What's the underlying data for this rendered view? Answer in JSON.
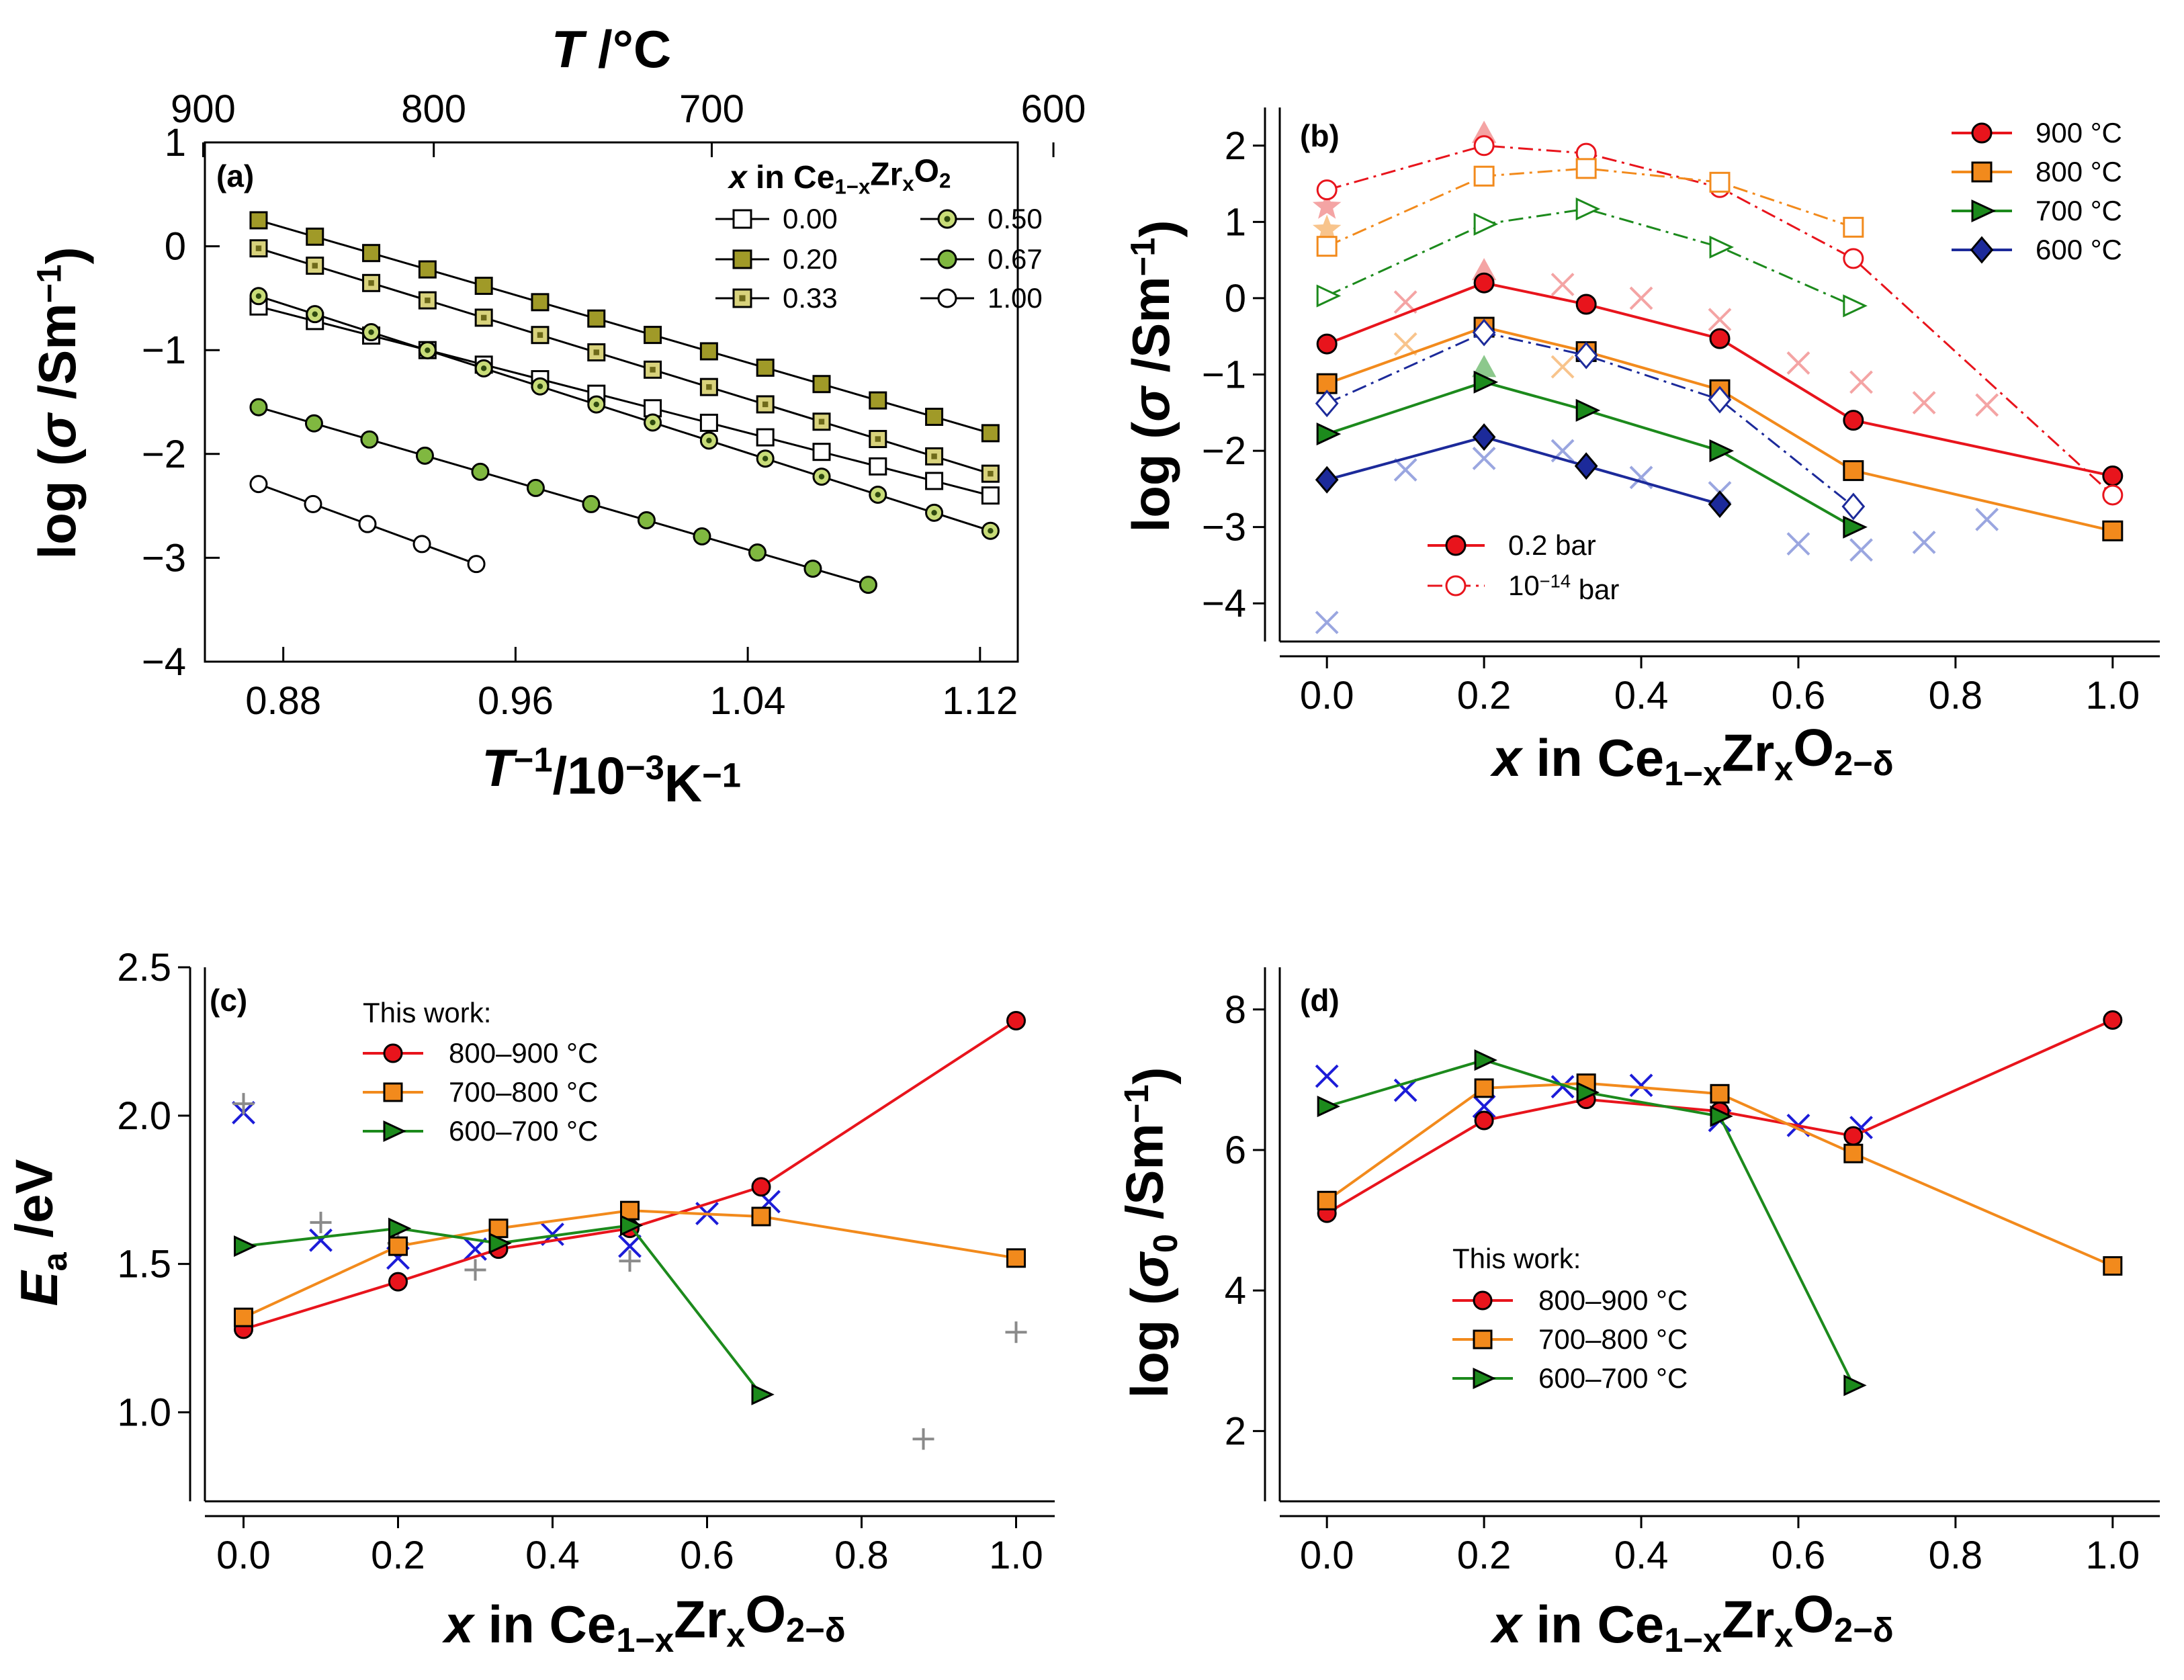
{
  "chart_data": [
    {
      "panel": "(a)",
      "type": "line",
      "xlabel_main": "T",
      "xlabel_sup": "−1",
      "xlabel_units": "/10",
      "xlabel_exp": "−3",
      "xlabel_units2": "K",
      "xlabel_exp2": "−1",
      "ylabel_main": "log (",
      "ylabel_sym": "σ",
      "ylabel_units": " /Sm",
      "ylabel_sup": "−1",
      "ylabel_close": ")",
      "top_axis_title_sym": "T",
      "top_axis_title_units": " /°C",
      "top_ticks": [
        "900",
        "800",
        "700",
        "600"
      ],
      "top_tick_values_C": [
        900,
        800,
        700,
        600
      ],
      "xlim": [
        0.853,
        1.133
      ],
      "ylim": [
        -4,
        1
      ],
      "xticks": [
        0.88,
        0.96,
        1.04,
        1.12
      ],
      "xtick_labels": [
        "0.88",
        "0.96",
        "1.04",
        "1.12"
      ],
      "yticks": [
        -4,
        -3,
        -2,
        -1,
        0,
        1
      ],
      "ytick_labels": [
        "−4",
        "−3",
        "−2",
        "−1",
        "0",
        "1"
      ],
      "legend_title_sym": "x",
      "legend_title_text": " in Ce",
      "legend_title_sub1": "1−x",
      "legend_title_mid": "Zr",
      "legend_title_sub2": "x",
      "legend_title_mid2": "O",
      "legend_title_sub3": "2",
      "series": [
        {
          "name": "0.00",
          "marker": "square",
          "fill": "#ffffff",
          "inner": "",
          "x_start": 0.8715,
          "x_end": 1.1236,
          "y_start": -0.58,
          "y_end": -2.4
        },
        {
          "name": "0.20",
          "marker": "square",
          "fill": "#a09a28",
          "inner": "",
          "x_start": 0.8715,
          "x_end": 1.1236,
          "y_start": 0.25,
          "y_end": -1.8
        },
        {
          "name": "0.33",
          "marker": "square",
          "fill": "#d8d27c",
          "inner": "#6e6a1a",
          "x_start": 0.8715,
          "x_end": 1.1236,
          "y_start": -0.02,
          "y_end": -2.19
        },
        {
          "name": "0.50",
          "marker": "circle",
          "fill": "#c8dc78",
          "inner": "#2f4a10",
          "x_start": 0.8715,
          "x_end": 1.1236,
          "y_start": -0.48,
          "y_end": -2.74
        },
        {
          "name": "0.67",
          "marker": "circle",
          "fill": "#80b840",
          "inner": "",
          "x_start": 0.8715,
          "x_end": 1.0815,
          "y_start": -1.55,
          "y_end": -3.26
        },
        {
          "name": "1.00",
          "marker": "circle",
          "fill": "#ffffff",
          "inner": "",
          "x_start": 0.8715,
          "x_end": 0.9465,
          "y_start": -2.29,
          "y_end": -3.06
        }
      ]
    },
    {
      "panel": "(b)",
      "type": "line",
      "xlabel_sym": "x",
      "xlabel_text": " in Ce",
      "xlabel_sub1": "1−x",
      "xlabel_mid": "Zr",
      "xlabel_sub2": "x",
      "xlabel_mid2": "O",
      "xlabel_sub3": "2−δ",
      "ylabel_main": "log (",
      "ylabel_sym": "σ",
      "ylabel_units": " /Sm",
      "ylabel_sup": "−1",
      "ylabel_close": ")",
      "xlim": [
        -0.06,
        1.06
      ],
      "ylim": [
        -4.5,
        2.5
      ],
      "xticks": [
        0,
        0.2,
        0.4,
        0.6,
        0.8,
        1.0
      ],
      "xtick_labels": [
        "0.0",
        "0.2",
        "0.4",
        "0.6",
        "0.8",
        "1.0"
      ],
      "yticks": [
        -4,
        -3,
        -2,
        -1,
        0,
        1,
        2
      ],
      "ytick_labels": [
        "−4",
        "−3",
        "−2",
        "−1",
        "0",
        "1",
        "2"
      ],
      "legend_pressure": [
        "0.2 bar",
        "10",
        "−14",
        " bar"
      ],
      "series": [
        {
          "name": "900 °C",
          "color": "#e8141c",
          "marker": "circle",
          "dash": false,
          "x": [
            0,
            0.2,
            0.33,
            0.5,
            0.67,
            1.0
          ],
          "y": [
            -0.6,
            0.2,
            -0.08,
            -0.53,
            -1.6,
            -2.33
          ]
        },
        {
          "name": "800 °C",
          "color": "#f28a1c",
          "marker": "square",
          "dash": false,
          "x": [
            0,
            0.2,
            0.33,
            0.5,
            0.67,
            1.0
          ],
          "y": [
            -1.12,
            -0.38,
            -0.7,
            -1.2,
            -2.26,
            -3.05
          ]
        },
        {
          "name": "700 °C",
          "color": "#1c8a1c",
          "marker": "triangle",
          "dash": false,
          "x": [
            0,
            0.2,
            0.33,
            0.5,
            0.67
          ],
          "y": [
            -1.78,
            -1.1,
            -1.47,
            -2.0,
            -3.0
          ]
        },
        {
          "name": "600 °C",
          "color": "#1c2a9a",
          "marker": "diamond",
          "dash": false,
          "x": [
            0,
            0.2,
            0.33,
            0.5
          ],
          "y": [
            -2.38,
            -1.82,
            -2.2,
            -2.7
          ]
        },
        {
          "name": "900 °C (10^-14 bar)",
          "color": "#e8141c",
          "marker": "circle",
          "dash": true,
          "x": [
            0,
            0.2,
            0.33,
            0.5,
            0.67,
            1.0
          ],
          "y": [
            1.42,
            2.0,
            1.9,
            1.45,
            0.52,
            -2.58
          ]
        },
        {
          "name": "800 °C (10^-14 bar)",
          "color": "#f28a1c",
          "marker": "square",
          "dash": true,
          "x": [
            0,
            0.2,
            0.33,
            0.5,
            0.67
          ],
          "y": [
            0.68,
            1.6,
            1.7,
            1.52,
            0.93
          ]
        },
        {
          "name": "700 °C (10^-14 bar)",
          "color": "#1c8a1c",
          "marker": "triangle",
          "dash": true,
          "x": [
            0,
            0.2,
            0.33,
            0.5,
            0.67
          ],
          "y": [
            0.03,
            0.97,
            1.17,
            0.67,
            -0.1
          ]
        },
        {
          "name": "600 °C (10^-14 bar)",
          "color": "#1c2a9a",
          "marker": "diamond",
          "dash": true,
          "x": [
            0,
            0.2,
            0.33,
            0.5,
            0.67
          ],
          "y": [
            -1.38,
            -0.45,
            -0.75,
            -1.33,
            -2.73
          ]
        }
      ],
      "literature": [
        {
          "marker": "x",
          "color": "#f4a4a4",
          "x": [
            0.1,
            0.3,
            0.4,
            0.5,
            0.6,
            0.68,
            0.76,
            0.84
          ],
          "y": [
            -0.05,
            0.18,
            0.0,
            -0.28,
            -0.85,
            -1.1,
            -1.37,
            -1.4
          ]
        },
        {
          "marker": "x",
          "color": "#f8c48c",
          "x": [
            0.1,
            0.3
          ],
          "y": [
            -0.6,
            -0.9
          ]
        },
        {
          "marker": "x",
          "color": "#9aa6e0",
          "x": [
            0,
            0.1,
            0.2,
            0.3,
            0.4,
            0.5,
            0.6,
            0.68,
            0.76,
            0.84
          ],
          "y": [
            -4.25,
            -2.25,
            -2.1,
            -2.0,
            -2.35,
            -2.55,
            -3.22,
            -3.3,
            -3.2,
            -2.9
          ]
        },
        {
          "marker": "triangle-up",
          "color": "#f4a4a4",
          "x": [
            0.2,
            0.2
          ],
          "y": [
            0.35,
            2.15
          ]
        },
        {
          "marker": "triangle-up",
          "color": "#8cc88c",
          "x": [
            0.2
          ],
          "y": [
            -0.92
          ]
        },
        {
          "marker": "star",
          "color": "#f8c48c",
          "x": [
            0
          ],
          "y": [
            0.9
          ]
        },
        {
          "marker": "star",
          "color": "#f4a4a4",
          "x": [
            0
          ],
          "y": [
            1.2
          ]
        }
      ]
    },
    {
      "panel": "(c)",
      "type": "line",
      "xlabel_sym": "x",
      "xlabel_text": " in Ce",
      "xlabel_sub1": "1−x",
      "xlabel_mid": "Zr",
      "xlabel_sub2": "x",
      "xlabel_mid2": "O",
      "xlabel_sub3": "2−δ",
      "ylabel_sym": "E",
      "ylabel_sub": "a",
      "ylabel_units": " /eV",
      "xlim": [
        -0.05,
        1.05
      ],
      "ylim": [
        0.7,
        2.5
      ],
      "xticks": [
        0,
        0.2,
        0.4,
        0.6,
        0.8,
        1.0
      ],
      "xtick_labels": [
        "0.0",
        "0.2",
        "0.4",
        "0.6",
        "0.8",
        "1.0"
      ],
      "yticks": [
        1.0,
        1.5,
        2.0,
        2.5
      ],
      "ytick_labels": [
        "1.0",
        "1.5",
        "2.0",
        "2.5"
      ],
      "legend_header": "This work:",
      "series": [
        {
          "name": "800–900 °C",
          "color": "#e8141c",
          "marker": "circle",
          "x": [
            0,
            0.2,
            0.33,
            0.5,
            0.67,
            1.0
          ],
          "y": [
            1.28,
            1.44,
            1.55,
            1.62,
            1.76,
            2.32
          ]
        },
        {
          "name": "700–800 °C",
          "color": "#f28a1c",
          "marker": "square",
          "x": [
            0,
            0.2,
            0.33,
            0.5,
            0.67,
            1.0
          ],
          "y": [
            1.32,
            1.56,
            1.62,
            1.68,
            1.66,
            1.52
          ]
        },
        {
          "name": "600–700 °C",
          "color": "#1c8a1c",
          "marker": "triangle",
          "x": [
            0,
            0.2,
            0.33,
            0.5,
            0.67
          ],
          "y": [
            1.56,
            1.62,
            1.57,
            1.63,
            1.06
          ]
        }
      ],
      "literature": [
        {
          "marker": "x",
          "color": "#1c1cd8",
          "x": [
            0,
            0.1,
            0.2,
            0.3,
            0.4,
            0.5,
            0.6,
            0.68
          ],
          "y": [
            2.01,
            1.58,
            1.52,
            1.55,
            1.6,
            1.56,
            1.67,
            1.71
          ]
        },
        {
          "marker": "plus",
          "color": "#8a8a8a",
          "x": [
            0,
            0.1,
            0.2,
            0.3,
            0.5,
            0.88,
            1.0
          ],
          "y": [
            2.04,
            1.64,
            1.57,
            1.48,
            1.51,
            0.91,
            1.27
          ]
        }
      ]
    },
    {
      "panel": "(d)",
      "type": "line",
      "xlabel_sym": "x",
      "xlabel_text": " in Ce",
      "xlabel_sub1": "1−x",
      "xlabel_mid": "Zr",
      "xlabel_sub2": "x",
      "xlabel_mid2": "O",
      "xlabel_sub3": "2−δ",
      "ylabel_main": "log (",
      "ylabel_sym": "σ",
      "ylabel_sub": "0",
      "ylabel_units": " /Sm",
      "ylabel_sup": "−1",
      "ylabel_close": ")",
      "xlim": [
        -0.06,
        1.06
      ],
      "ylim": [
        1.0,
        8.6
      ],
      "xticks": [
        0,
        0.2,
        0.4,
        0.6,
        0.8,
        1.0
      ],
      "xtick_labels": [
        "0.0",
        "0.2",
        "0.4",
        "0.6",
        "0.8",
        "1.0"
      ],
      "yticks": [
        2,
        4,
        6,
        8
      ],
      "ytick_labels": [
        "2",
        "4",
        "6",
        "8"
      ],
      "legend_header": "This work:",
      "series": [
        {
          "name": "800–900 °C",
          "color": "#e8141c",
          "marker": "circle",
          "x": [
            0,
            0.2,
            0.33,
            0.5,
            0.67,
            1.0
          ],
          "y": [
            5.1,
            6.42,
            6.72,
            6.55,
            6.2,
            7.85
          ]
        },
        {
          "name": "700–800 °C",
          "color": "#f28a1c",
          "marker": "square",
          "x": [
            0,
            0.2,
            0.33,
            0.5,
            0.67,
            1.0
          ],
          "y": [
            5.28,
            6.88,
            6.95,
            6.8,
            5.95,
            4.35
          ]
        },
        {
          "name": "600–700 °C",
          "color": "#1c8a1c",
          "marker": "triangle",
          "x": [
            0,
            0.2,
            0.33,
            0.5,
            0.67
          ],
          "y": [
            6.62,
            7.28,
            6.82,
            6.48,
            2.65
          ]
        }
      ],
      "literature": [
        {
          "marker": "x",
          "color": "#1c1cd8",
          "x": [
            0,
            0.1,
            0.2,
            0.3,
            0.4,
            0.5,
            0.6,
            0.68
          ],
          "y": [
            7.05,
            6.85,
            6.62,
            6.9,
            6.92,
            6.42,
            6.35,
            6.32
          ]
        }
      ]
    }
  ]
}
